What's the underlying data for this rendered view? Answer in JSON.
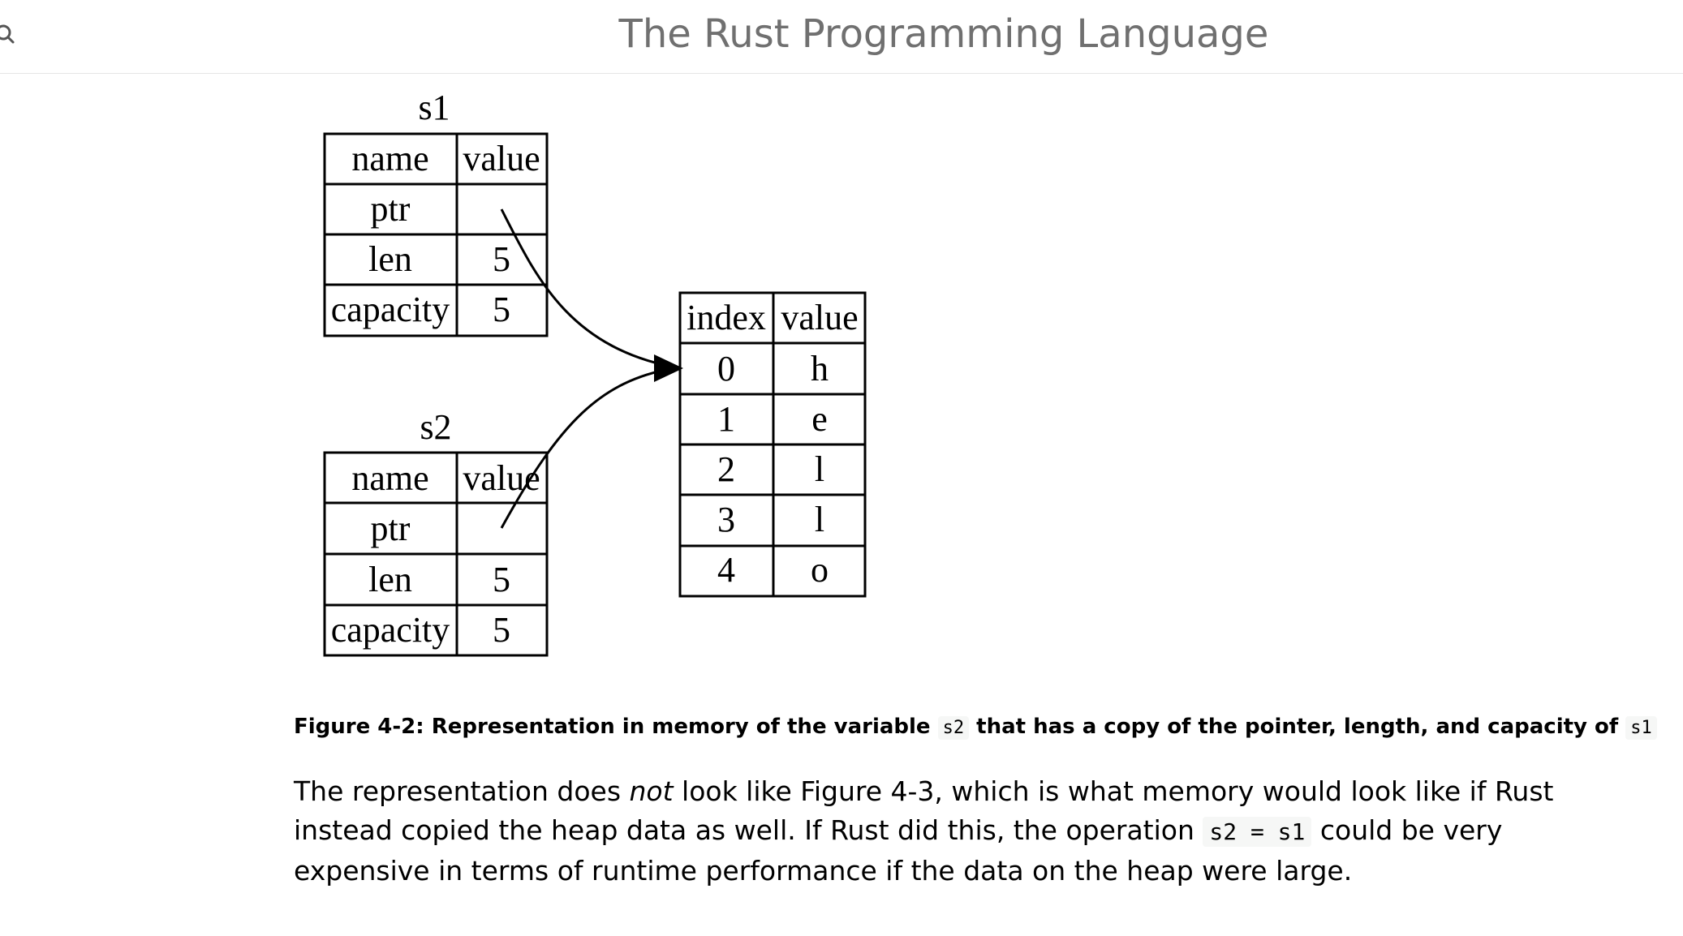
{
  "header": {
    "title": "The Rust Programming Language",
    "search_icon": "search-icon"
  },
  "figure": {
    "s1": {
      "label": "s1",
      "header": [
        "name",
        "value"
      ],
      "rows": [
        [
          "ptr",
          ""
        ],
        [
          "len",
          "5"
        ],
        [
          "capacity",
          "5"
        ]
      ]
    },
    "s2": {
      "label": "s2",
      "header": [
        "name",
        "value"
      ],
      "rows": [
        [
          "ptr",
          ""
        ],
        [
          "len",
          "5"
        ],
        [
          "capacity",
          "5"
        ]
      ]
    },
    "heap": {
      "header": [
        "index",
        "value"
      ],
      "rows": [
        [
          "0",
          "h"
        ],
        [
          "1",
          "e"
        ],
        [
          "2",
          "l"
        ],
        [
          "3",
          "l"
        ],
        [
          "4",
          "o"
        ]
      ]
    }
  },
  "caption": {
    "part1": "Figure 4-2: Representation in memory of the variable ",
    "code1": "s2",
    "part2": " that has a copy of the pointer, length, and capacity of ",
    "code2": "s1"
  },
  "paragraph": {
    "part1": "The representation does ",
    "emphasis": "not",
    "part2": " look like Figure 4-3, which is what memory would look like if Rust instead copied the heap data as well. If Rust did this, the operation ",
    "code": "s2 = s1",
    "part3": " could be very expensive in terms of runtime performance if the data on the heap were large."
  }
}
